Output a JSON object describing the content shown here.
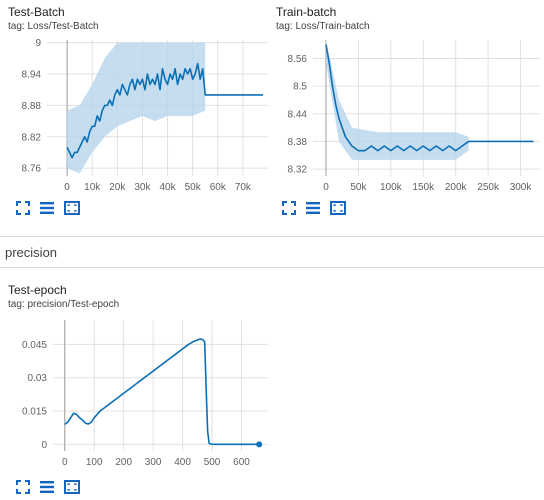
{
  "colors": {
    "series": "#0a6fb5",
    "series_light": "#b7d5eb",
    "grid": "#e0e0e0",
    "axis": "#9e9e9e",
    "icon": "#1565c0"
  },
  "section": {
    "title": "precision"
  },
  "toolbar": {
    "icons": [
      "fullscreen-icon",
      "list-icon",
      "fit-domain-icon"
    ]
  },
  "cards": [
    {
      "id": "test-batch",
      "title": "Test-Batch",
      "tag": "tag: Loss/Test-Batch",
      "chart_data": {
        "type": "line",
        "xlim": [
          -8000,
          80000
        ],
        "ylim": [
          8.745,
          9.005
        ],
        "xticks": [
          0,
          10000,
          20000,
          30000,
          40000,
          50000,
          60000,
          70000
        ],
        "xtick_labels": [
          "0",
          "10k",
          "20k",
          "30k",
          "40k",
          "50k",
          "60k",
          "70k"
        ],
        "yticks": [
          8.76,
          8.82,
          8.88,
          8.94,
          9
        ],
        "ytick_labels": [
          "8.76",
          "8.82",
          "8.88",
          "8.94",
          "9"
        ],
        "grid": true,
        "series": [
          {
            "smoothed": [
              [
                0,
                8.8
              ],
              [
                1000,
                8.79
              ],
              [
                2000,
                8.78
              ],
              [
                3000,
                8.79
              ],
              [
                4000,
                8.79
              ],
              [
                5000,
                8.8
              ],
              [
                6000,
                8.81
              ],
              [
                7000,
                8.82
              ],
              [
                8000,
                8.81
              ],
              [
                9000,
                8.83
              ],
              [
                10000,
                8.84
              ],
              [
                11000,
                8.84
              ],
              [
                12000,
                8.86
              ],
              [
                13000,
                8.85
              ],
              [
                14000,
                8.87
              ],
              [
                15000,
                8.88
              ],
              [
                16000,
                8.88
              ],
              [
                17000,
                8.89
              ],
              [
                18000,
                8.88
              ],
              [
                19000,
                8.9
              ],
              [
                20000,
                8.91
              ],
              [
                21000,
                8.9
              ],
              [
                22000,
                8.92
              ],
              [
                23000,
                8.91
              ],
              [
                24000,
                8.9
              ],
              [
                25000,
                8.92
              ],
              [
                26000,
                8.93
              ],
              [
                27000,
                8.91
              ],
              [
                28000,
                8.93
              ],
              [
                29000,
                8.92
              ],
              [
                30000,
                8.93
              ],
              [
                31000,
                8.91
              ],
              [
                32000,
                8.94
              ],
              [
                33000,
                8.92
              ],
              [
                34000,
                8.93
              ],
              [
                35000,
                8.92
              ],
              [
                36000,
                8.94
              ],
              [
                37000,
                8.91
              ],
              [
                38000,
                8.95
              ],
              [
                39000,
                8.93
              ],
              [
                40000,
                8.92
              ],
              [
                41000,
                8.94
              ],
              [
                42000,
                8.93
              ],
              [
                43000,
                8.95
              ],
              [
                44000,
                8.92
              ],
              [
                45000,
                8.94
              ],
              [
                46000,
                8.93
              ],
              [
                47000,
                8.95
              ],
              [
                48000,
                8.94
              ],
              [
                49000,
                8.95
              ],
              [
                50000,
                8.93
              ],
              [
                51000,
                8.94
              ],
              [
                52000,
                8.96
              ],
              [
                53000,
                8.93
              ],
              [
                54000,
                8.95
              ],
              [
                55000,
                8.9
              ],
              [
                60000,
                8.9
              ],
              [
                65000,
                8.9
              ],
              [
                70000,
                8.9
              ],
              [
                75000,
                8.9
              ],
              [
                78000,
                8.9
              ]
            ],
            "raw_range": [
              [
                0,
                8.76,
                8.87
              ],
              [
                5000,
                8.75,
                8.88
              ],
              [
                10000,
                8.79,
                8.92
              ],
              [
                15000,
                8.82,
                8.97
              ],
              [
                20000,
                8.84,
                9.0
              ],
              [
                25000,
                8.85,
                9.0
              ],
              [
                30000,
                8.86,
                9.0
              ],
              [
                35000,
                8.85,
                9.0
              ],
              [
                40000,
                8.86,
                9.0
              ],
              [
                45000,
                8.86,
                9.0
              ],
              [
                50000,
                8.86,
                9.0
              ],
              [
                55000,
                8.87,
                9.0
              ]
            ]
          }
        ]
      }
    },
    {
      "id": "train-batch",
      "title": "Train-batch",
      "tag": "tag: Loss/Train-batch",
      "chart_data": {
        "type": "line",
        "xlim": [
          -20000,
          330000
        ],
        "ylim": [
          8.305,
          8.6
        ],
        "xticks": [
          0,
          50000,
          100000,
          150000,
          200000,
          250000,
          300000
        ],
        "xtick_labels": [
          "0",
          "50k",
          "100k",
          "150k",
          "200k",
          "250k",
          "300k"
        ],
        "yticks": [
          8.32,
          8.38,
          8.44,
          8.5,
          8.56
        ],
        "ytick_labels": [
          "8.32",
          "8.38",
          "8.44",
          "8.5",
          "8.56"
        ],
        "grid": true,
        "series": [
          {
            "smoothed": [
              [
                0,
                8.59
              ],
              [
                5000,
                8.55
              ],
              [
                10000,
                8.5
              ],
              [
                15000,
                8.46
              ],
              [
                20000,
                8.43
              ],
              [
                25000,
                8.41
              ],
              [
                30000,
                8.39
              ],
              [
                35000,
                8.38
              ],
              [
                40000,
                8.37
              ],
              [
                50000,
                8.36
              ],
              [
                60000,
                8.36
              ],
              [
                70000,
                8.37
              ],
              [
                80000,
                8.36
              ],
              [
                90000,
                8.37
              ],
              [
                100000,
                8.36
              ],
              [
                110000,
                8.37
              ],
              [
                120000,
                8.36
              ],
              [
                130000,
                8.37
              ],
              [
                140000,
                8.36
              ],
              [
                150000,
                8.37
              ],
              [
                160000,
                8.36
              ],
              [
                170000,
                8.37
              ],
              [
                180000,
                8.36
              ],
              [
                190000,
                8.37
              ],
              [
                200000,
                8.36
              ],
              [
                210000,
                8.37
              ],
              [
                220000,
                8.38
              ],
              [
                240000,
                8.38
              ],
              [
                260000,
                8.38
              ],
              [
                280000,
                8.38
              ],
              [
                300000,
                8.38
              ],
              [
                320000,
                8.38
              ]
            ],
            "raw_range": [
              [
                0,
                8.55,
                8.6
              ],
              [
                20000,
                8.38,
                8.47
              ],
              [
                40000,
                8.34,
                8.41
              ],
              [
                80000,
                8.34,
                8.4
              ],
              [
                120000,
                8.34,
                8.4
              ],
              [
                160000,
                8.34,
                8.4
              ],
              [
                200000,
                8.34,
                8.4
              ],
              [
                220000,
                8.36,
                8.39
              ]
            ]
          }
        ]
      }
    },
    {
      "id": "test-epoch",
      "title": "Test-epoch",
      "tag": "tag: precision/Test-epoch",
      "chart_data": {
        "type": "line",
        "xlim": [
          -40,
          690
        ],
        "ylim": [
          -0.003,
          0.056
        ],
        "xticks": [
          0,
          100,
          200,
          300,
          400,
          500,
          600
        ],
        "xtick_labels": [
          "0",
          "100",
          "200",
          "300",
          "400",
          "500",
          "600"
        ],
        "yticks": [
          0,
          0.015,
          0.03,
          0.045
        ],
        "ytick_labels": [
          "0",
          "0.015",
          "0.03",
          "0.045"
        ],
        "grid": true,
        "series": [
          {
            "smoothed": [
              [
                0,
                0.009
              ],
              [
                10,
                0.01
              ],
              [
                20,
                0.012
              ],
              [
                30,
                0.014
              ],
              [
                40,
                0.0135
              ],
              [
                50,
                0.012
              ],
              [
                60,
                0.011
              ],
              [
                70,
                0.0095
              ],
              [
                80,
                0.0092
              ],
              [
                90,
                0.01
              ],
              [
                100,
                0.012
              ],
              [
                120,
                0.015
              ],
              [
                140,
                0.017
              ],
              [
                160,
                0.019
              ],
              [
                180,
                0.021
              ],
              [
                200,
                0.023
              ],
              [
                220,
                0.025
              ],
              [
                240,
                0.027
              ],
              [
                260,
                0.029
              ],
              [
                280,
                0.031
              ],
              [
                300,
                0.033
              ],
              [
                320,
                0.035
              ],
              [
                340,
                0.037
              ],
              [
                360,
                0.039
              ],
              [
                380,
                0.041
              ],
              [
                400,
                0.043
              ],
              [
                420,
                0.045
              ],
              [
                440,
                0.0465
              ],
              [
                450,
                0.047
              ],
              [
                460,
                0.0475
              ],
              [
                470,
                0.047
              ],
              [
                475,
                0.046
              ],
              [
                480,
                0.025
              ],
              [
                485,
                0.006
              ],
              [
                490,
                0.0005
              ],
              [
                500,
                0
              ],
              [
                550,
                0
              ],
              [
                600,
                0
              ],
              [
                660,
                0
              ]
            ],
            "end_point": [
              660,
              0
            ]
          }
        ]
      }
    }
  ]
}
